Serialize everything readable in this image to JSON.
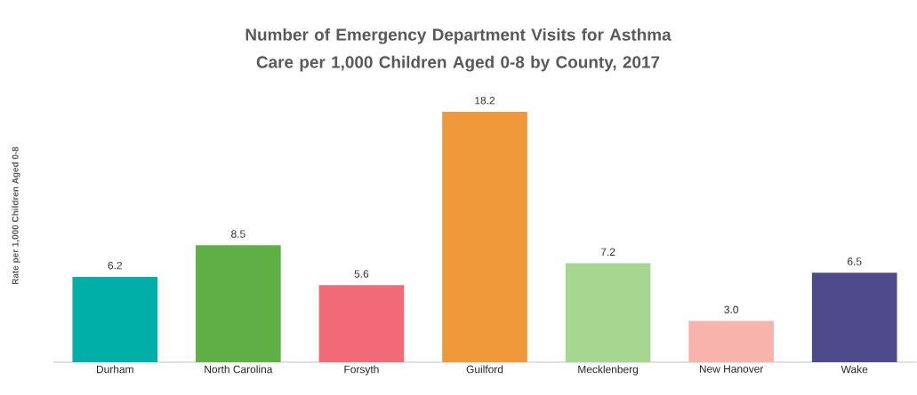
{
  "chart_data": {
    "type": "bar",
    "title": "Number of Emergency Department Visits for Asthma Care per 1,000 Children Aged 0-8 by County, 2017",
    "ylabel": "Rate per 1,000 Children Aged 0-8",
    "categories": [
      "Durham",
      "North Carolina",
      "Forsyth",
      "Guilford",
      "Mecklenberg",
      "New Hanover",
      "Wake"
    ],
    "values": [
      6.2,
      8.5,
      5.6,
      18.2,
      7.2,
      3.0,
      6.5
    ],
    "value_labels": [
      "6.2",
      "8.5",
      "5.6",
      "18.2",
      "7.2",
      "3.0",
      "6.5"
    ],
    "colors": [
      "#00b0a8",
      "#5daf46",
      "#f26a78",
      "#f0993b",
      "#a6d68f",
      "#f8b4ac",
      "#4e4a8c"
    ]
  }
}
